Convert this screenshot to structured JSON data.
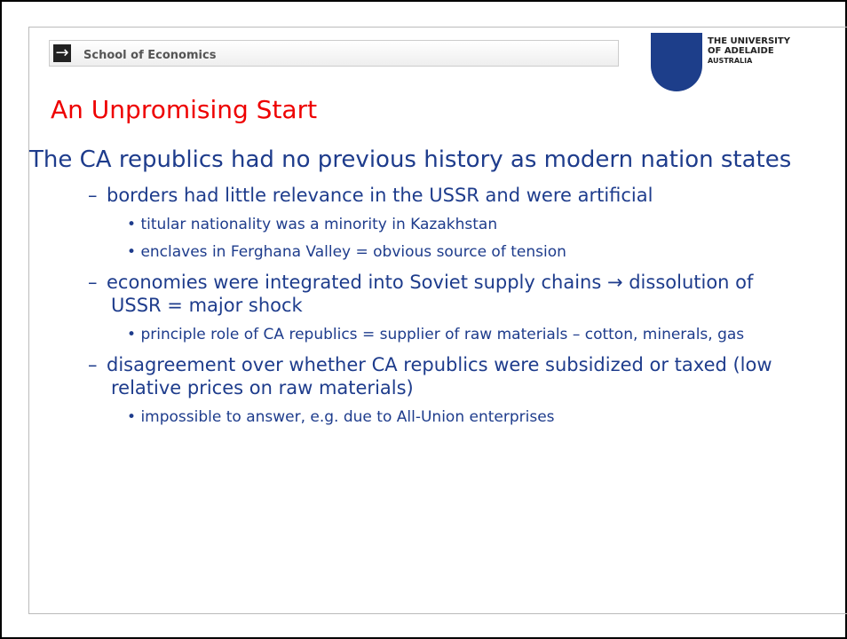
{
  "header": {
    "school": "School of Economics",
    "logo": [
      "THE UNIVERSITY",
      "OF ADELAIDE",
      "AUSTRALIA"
    ]
  },
  "title": "An Unpromising Start",
  "heading": "The CA republics had no previous history as modern nation states",
  "items": [
    {
      "text": "borders had little relevance in the USSR and were artificial",
      "subitems": [
        "titular nationality was a minority in Kazakhstan",
        "enclaves in Ferghana Valley = obvious source of tension"
      ]
    },
    {
      "text": "economies were integrated into Soviet supply chains → dissolution of USSR = major shock",
      "subitems": [
        "principle role of CA republics = supplier of raw materials – cotton, minerals, gas"
      ]
    },
    {
      "text": "disagreement over whether CA republics were subsidized or taxed (low relative prices on raw materials)",
      "subitems": [
        "impossible to answer, e.g. due to All-Union enterprises"
      ]
    }
  ]
}
